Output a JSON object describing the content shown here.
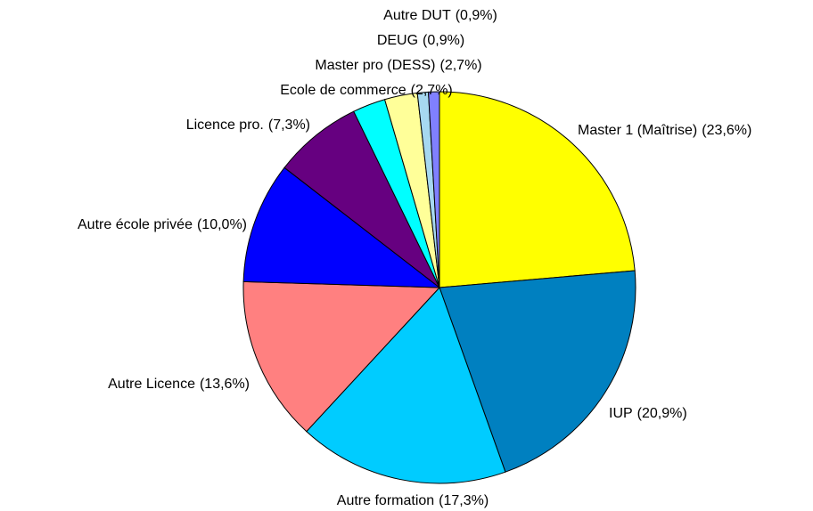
{
  "chart_data": {
    "type": "pie",
    "categories": [
      "Master 1 (Maîtrise)",
      "IUP",
      "Autre formation",
      "Autre Licence",
      "Autre école privée",
      "Licence pro.",
      "Ecole de commerce",
      "Master pro (DESS)",
      "DEUG",
      "Autre DUT"
    ],
    "values": [
      23.6,
      20.9,
      17.3,
      13.6,
      10.0,
      7.3,
      2.7,
      2.7,
      0.9,
      0.9
    ],
    "value_labels": [
      "(23,6%)",
      "(20,9%)",
      "(17,3%)",
      "(13,6%)",
      "(10,0%)",
      "(7,3%)",
      "(2,7%)",
      "(2,7%)",
      "(0,9%)",
      "(0,9%)"
    ],
    "colors": [
      "#ffff00",
      "#0080c0",
      "#00ccff",
      "#ff8080",
      "#0000ff",
      "#660080",
      "#00ffff",
      "#ffff99",
      "#a6d8f0",
      "#8080ff"
    ]
  }
}
